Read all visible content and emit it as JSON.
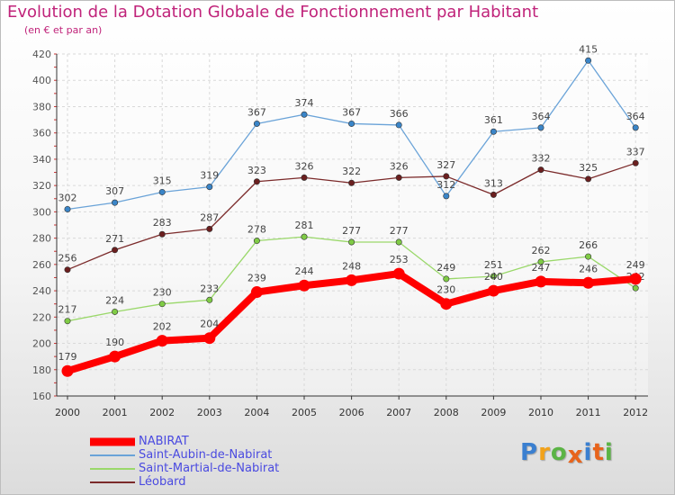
{
  "header": {
    "title": "Evolution de la Dotation Globale de Fonctionnement par Habitant",
    "subtitle": "(en € et par an)"
  },
  "logo": {
    "text": "Proxiti",
    "letters": [
      {
        "ch": "P",
        "color": "#3a7fd0"
      },
      {
        "ch": "r",
        "color": "#f2a21a"
      },
      {
        "ch": "o",
        "color": "#5bb445"
      },
      {
        "ch": "x",
        "color": "#e8641b"
      },
      {
        "ch": "i",
        "color": "#3a7fd0"
      },
      {
        "ch": "t",
        "color": "#e8641b"
      },
      {
        "ch": "i",
        "color": "#5bb445"
      }
    ]
  },
  "legend": [
    {
      "name": "NABIRAT",
      "color": "#ff0000"
    },
    {
      "name": "Saint-Aubin-de-Nabirat",
      "color": "#6aa3d8"
    },
    {
      "name": "Saint-Martial-de-Nabirat",
      "color": "#9ad86a"
    },
    {
      "name": "Léobard",
      "color": "#7b2a2a"
    }
  ],
  "chart_data": {
    "type": "line",
    "title": "Evolution de la Dotation Globale de Fonctionnement par Habitant",
    "subtitle": "(en € et par an)",
    "categories": [
      "2000",
      "2001",
      "2002",
      "2003",
      "2004",
      "2005",
      "2006",
      "2007",
      "2008",
      "2009",
      "2010",
      "2011",
      "2012"
    ],
    "ylim": [
      160,
      420
    ],
    "yticks": [
      160,
      180,
      200,
      220,
      240,
      260,
      280,
      300,
      320,
      340,
      360,
      380,
      400,
      420
    ],
    "grid": true,
    "legend_position": "bottom-left",
    "series": [
      {
        "name": "Saint-Aubin-de-Nabirat",
        "color": "#6aa3d8",
        "marker": "#3a85c8",
        "values": [
          302,
          307,
          315,
          319,
          367,
          374,
          367,
          366,
          312,
          361,
          364,
          415,
          364
        ]
      },
      {
        "name": "Léobard",
        "color": "#7b2a2a",
        "marker": "#6b1f1f",
        "values": [
          256,
          271,
          283,
          287,
          323,
          326,
          322,
          326,
          327,
          313,
          332,
          325,
          337
        ]
      },
      {
        "name": "Saint-Martial-de-Nabirat",
        "color": "#9ad86a",
        "marker": "#7fcb45",
        "values": [
          217,
          224,
          230,
          233,
          278,
          281,
          277,
          277,
          249,
          251,
          262,
          266,
          242
        ]
      },
      {
        "name": "NABIRAT",
        "color": "#ff0000",
        "marker": "#ff0000",
        "values": [
          179,
          190,
          202,
          204,
          239,
          244,
          248,
          253,
          230,
          240,
          247,
          246,
          249
        ]
      }
    ]
  }
}
